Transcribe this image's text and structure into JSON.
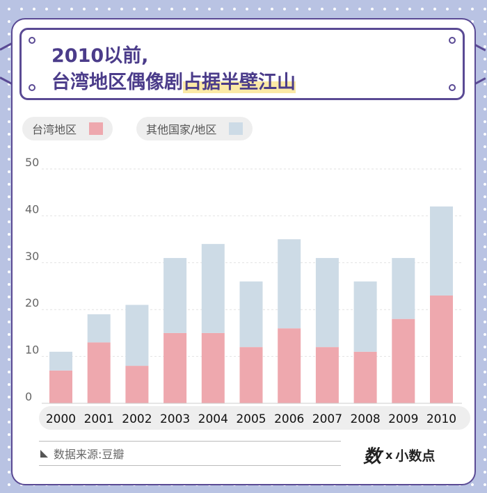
{
  "title": {
    "line1": "2010以前,",
    "line2_plain": "台湾地区偶像剧",
    "line2_highlight": "占据半壁江山"
  },
  "legend": [
    {
      "label": "台湾地区",
      "color": "#eea8ae"
    },
    {
      "label": "其他国家/地区",
      "color": "#cddbe6"
    }
  ],
  "chart_data": {
    "type": "bar",
    "stacked": true,
    "categories": [
      "2000",
      "2001",
      "2002",
      "2003",
      "2004",
      "2005",
      "2006",
      "2007",
      "2008",
      "2009",
      "2010"
    ],
    "series": [
      {
        "name": "台湾地区",
        "color": "#eea8ae",
        "values": [
          7,
          13,
          8,
          15,
          15,
          12,
          16,
          12,
          11,
          18,
          23
        ]
      },
      {
        "name": "其他国家/地区",
        "color": "#cddbe6",
        "values": [
          4,
          6,
          13,
          16,
          19,
          14,
          19,
          19,
          15,
          13,
          19
        ]
      }
    ],
    "ylim": [
      0,
      50
    ],
    "yticks": [
      "0",
      "10",
      "20",
      "30",
      "40",
      "50"
    ],
    "grid": true,
    "legend_position": "top-left"
  },
  "source": "数据来源:豆瓣",
  "brand": {
    "mark": "数",
    "x": "x",
    "name": "小数点"
  }
}
